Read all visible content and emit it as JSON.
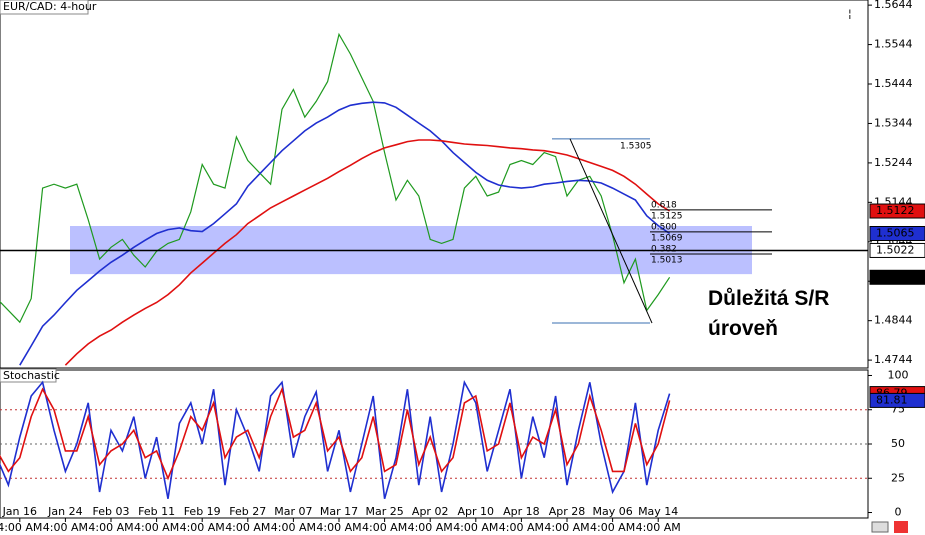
{
  "chart_data": [
    {
      "type": "line",
      "title": "EUR/CAD: 4-hour",
      "annotation": "Důležitá S/R úroveň",
      "categories": [
        null,
        null,
        "Jan 16",
        null,
        null,
        null,
        "Jan 24",
        null,
        null,
        null,
        "Feb 03",
        null,
        null,
        null,
        "Feb 11",
        null,
        null,
        null,
        "Feb 19",
        null,
        null,
        null,
        "Feb 27",
        null,
        null,
        null,
        "Mar 07",
        null,
        null,
        null,
        "Mar 17",
        null,
        null,
        null,
        "Mar 25",
        null,
        null,
        null,
        "Apr 02",
        null,
        null,
        null,
        "Apr 10",
        null,
        null,
        null,
        "Apr 18",
        null,
        null,
        null,
        "Apr 28",
        null,
        null,
        null,
        "May 06",
        null,
        null,
        null,
        "May 14",
        null
      ],
      "category_time": "4:00 AM",
      "series": [
        {
          "color": "#1f9a1f",
          "values": [
            1.49,
            1.487,
            1.484,
            1.49,
            1.518,
            1.519,
            1.518,
            1.519,
            1.51,
            1.5,
            1.503,
            1.505,
            1.501,
            1.498,
            1.502,
            1.504,
            1.505,
            1.512,
            1.524,
            1.519,
            1.518,
            1.531,
            1.525,
            1.522,
            1.519,
            1.538,
            1.543,
            1.536,
            1.54,
            1.545,
            1.557,
            1.552,
            1.546,
            1.54,
            1.527,
            1.515,
            1.52,
            1.516,
            1.505,
            1.504,
            1.505,
            1.518,
            1.521,
            1.516,
            1.517,
            1.524,
            1.525,
            1.524,
            1.527,
            1.526,
            1.516,
            1.52,
            1.521,
            1.516,
            1.506,
            1.494,
            1.5,
            1.487,
            1.491,
            1.4954
          ]
        },
        {
          "color": "#1f2fd0",
          "values": [
            null,
            null,
            1.4731,
            1.478,
            1.483,
            1.4858,
            1.489,
            1.4921,
            1.4945,
            1.497,
            1.4992,
            1.501,
            1.503,
            1.5048,
            1.5065,
            1.5075,
            1.5079,
            1.5072,
            1.507,
            1.509,
            1.5115,
            1.514,
            1.5185,
            1.5215,
            1.5245,
            1.5275,
            1.53,
            1.5325,
            1.5345,
            1.536,
            1.5378,
            1.539,
            1.5395,
            1.5398,
            1.5396,
            1.5385,
            1.5365,
            1.5345,
            1.5325,
            1.53,
            1.527,
            1.5245,
            1.522,
            1.52,
            1.5188,
            1.5183,
            1.518,
            1.5183,
            1.519,
            1.5193,
            1.5197,
            1.52,
            1.5198,
            1.5193,
            1.518,
            1.5165,
            1.515,
            1.511,
            1.5085,
            1.5065
          ]
        },
        {
          "color": "#e01010",
          "values": [
            null,
            null,
            null,
            null,
            null,
            null,
            1.4731,
            1.476,
            1.4785,
            1.4805,
            1.482,
            1.484,
            1.4858,
            1.4875,
            1.489,
            1.491,
            1.4935,
            1.4965,
            1.499,
            1.5015,
            1.504,
            1.5062,
            1.509,
            1.511,
            1.513,
            1.5145,
            1.516,
            1.5175,
            1.519,
            1.5205,
            1.5222,
            1.5238,
            1.5255,
            1.527,
            1.5282,
            1.529,
            1.5298,
            1.5302,
            1.5302,
            1.53,
            1.5296,
            1.5292,
            1.529,
            1.5288,
            1.5285,
            1.5282,
            1.528,
            1.5277,
            1.5275,
            1.527,
            1.5264,
            1.5255,
            1.5245,
            1.5235,
            1.5225,
            1.521,
            1.519,
            1.5165,
            1.514,
            1.5122
          ]
        }
      ],
      "ylim": [
        1.4724,
        1.5657
      ],
      "yticks": [
        1.5644,
        1.5544,
        1.5444,
        1.5344,
        1.5244,
        1.5144,
        1.5044,
        1.4944,
        1.4844,
        1.4744
      ],
      "hline": 1.5022,
      "zone": [
        1.4962,
        1.5084
      ],
      "fib": {
        "high": 1.5305,
        "low": 1.4838,
        "levels": [
          {
            "ratio": "0.618",
            "price": 1.5125
          },
          {
            "ratio": "0.500",
            "price": 1.5069
          },
          {
            "ratio": "0.382",
            "price": 1.5013
          }
        ]
      }
    },
    {
      "type": "line",
      "title": "Stochastic",
      "series": [
        {
          "color": "#1f2fd0",
          "values": [
            40,
            20,
            55,
            85,
            95,
            60,
            30,
            50,
            80,
            15,
            60,
            45,
            70,
            25,
            55,
            10,
            65,
            80,
            50,
            90,
            20,
            75,
            55,
            30,
            85,
            95,
            40,
            70,
            88,
            30,
            60,
            15,
            50,
            85,
            10,
            40,
            90,
            20,
            70,
            15,
            50,
            95,
            80,
            30,
            60,
            90,
            25,
            70,
            40,
            85,
            20,
            60,
            95,
            50,
            15,
            30,
            80,
            20,
            60,
            86.79
          ]
        },
        {
          "color": "#e01010",
          "values": [
            45,
            30,
            40,
            70,
            90,
            75,
            45,
            45,
            70,
            35,
            45,
            50,
            60,
            40,
            45,
            25,
            45,
            70,
            60,
            80,
            40,
            55,
            60,
            40,
            70,
            90,
            55,
            60,
            80,
            45,
            55,
            30,
            40,
            70,
            30,
            35,
            75,
            35,
            55,
            30,
            40,
            80,
            85,
            45,
            50,
            80,
            40,
            55,
            50,
            75,
            35,
            50,
            85,
            60,
            30,
            30,
            65,
            35,
            50,
            81.81
          ]
        }
      ],
      "ylim": [
        -4,
        104
      ],
      "yticks": [
        100,
        75,
        50,
        25,
        0
      ],
      "levels": [
        75,
        50,
        25
      ]
    }
  ]
}
